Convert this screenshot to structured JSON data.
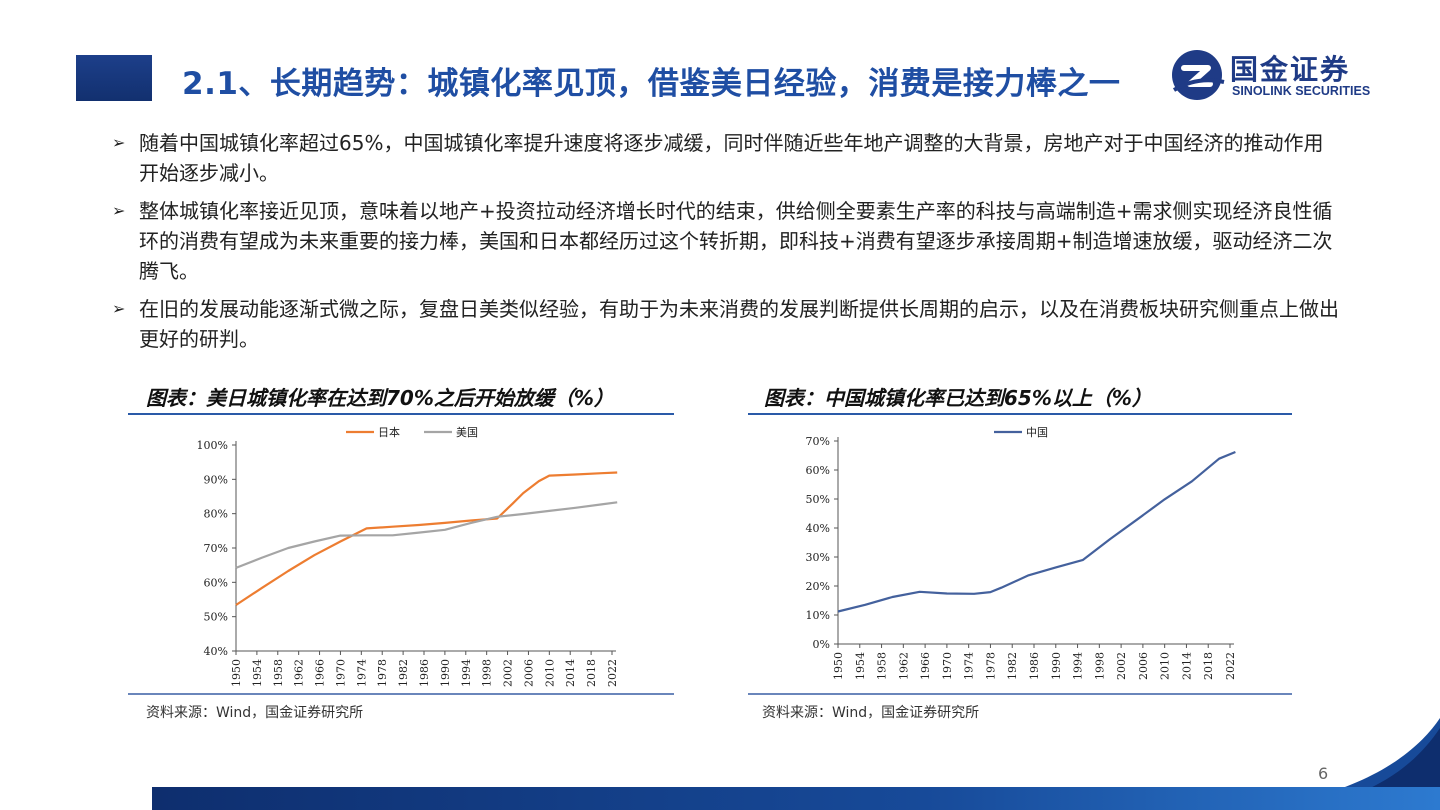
{
  "header": {
    "title": "2.1、长期趋势：城镇化率见顶，借鉴美日经验，消费是接力棒之一",
    "logo_cn": "国金证券",
    "logo_en": "SINOLINK SECURITIES",
    "logo_icon": "sinolink-logo-icon"
  },
  "bullets": [
    "随着中国城镇化率超过65%，中国城镇化率提升速度将逐步减缓，同时伴随近些年地产调整的大背景，房地产对于中国经济的推动作用开始逐步减小。",
    "整体城镇化率接近见顶，意味着以地产+投资拉动经济增长时代的结束，供给侧全要素生产率的科技与高端制造+需求侧实现经济良性循环的消费有望成为未来重要的接力棒，美国和日本都经历过这个转折期，即科技+消费有望逐步承接周期+制造增速放缓，驱动经济二次腾飞。",
    "在旧的发展动能逐渐式微之际，复盘日美类似经验，有助于为未来消费的发展判断提供长周期的启示，以及在消费板块研究侧重点上做出更好的研判。"
  ],
  "bullet_marker": "➢",
  "chart_data": [
    {
      "type": "line",
      "title": "图表：美日城镇化率在达到70%之后开始放缓（%）",
      "source": "资料来源：Wind，国金证券研究所",
      "xlabel": "",
      "ylabel": "",
      "ylim": [
        40,
        100
      ],
      "yticks": [
        "100%",
        "90%",
        "80%",
        "70%",
        "60%",
        "50%",
        "40%"
      ],
      "xticks": [
        "1950",
        "1954",
        "1958",
        "1962",
        "1966",
        "1970",
        "1974",
        "1978",
        "1982",
        "1986",
        "1990",
        "1994",
        "1998",
        "2002",
        "2006",
        "2010",
        "2014",
        "2018",
        "2022"
      ],
      "legend_position": "top",
      "series": [
        {
          "name": "日本",
          "color": "#ed7d31",
          "x": [
            1950,
            1955,
            1960,
            1965,
            1970,
            1975,
            1980,
            1985,
            1990,
            1995,
            2000,
            2003,
            2005,
            2008,
            2010,
            2015,
            2020,
            2023
          ],
          "values": [
            53.4,
            58.4,
            63.3,
            67.9,
            71.9,
            75.7,
            76.2,
            76.7,
            77.3,
            78.0,
            78.6,
            83.0,
            86.0,
            89.5,
            91.1,
            91.4,
            91.8,
            92.0
          ]
        },
        {
          "name": "美国",
          "color": "#a5a5a5",
          "x": [
            1950,
            1955,
            1960,
            1965,
            1970,
            1975,
            1980,
            1985,
            1990,
            1995,
            2000,
            2005,
            2010,
            2015,
            2020,
            2023
          ],
          "values": [
            64.2,
            67.2,
            70.0,
            71.9,
            73.6,
            73.7,
            73.7,
            74.5,
            75.3,
            77.3,
            79.1,
            79.9,
            80.8,
            81.7,
            82.7,
            83.3
          ]
        }
      ]
    },
    {
      "type": "line",
      "title": "图表：中国城镇化率已达到65%以上（%）",
      "source": "资料来源：Wind，国金证券研究所",
      "xlabel": "",
      "ylabel": "",
      "ylim": [
        0,
        70
      ],
      "yticks": [
        "70%",
        "60%",
        "50%",
        "40%",
        "30%",
        "20%",
        "10%",
        "0%"
      ],
      "xticks": [
        "1950",
        "1954",
        "1958",
        "1962",
        "1966",
        "1970",
        "1974",
        "1978",
        "1982",
        "1986",
        "1990",
        "1994",
        "1998",
        "2002",
        "2006",
        "2010",
        "2014",
        "2018",
        "2022"
      ],
      "legend_position": "top",
      "series": [
        {
          "name": "中国",
          "color": "#44619d",
          "x": [
            1950,
            1955,
            1960,
            1965,
            1970,
            1975,
            1978,
            1980,
            1985,
            1990,
            1995,
            2000,
            2005,
            2010,
            2015,
            2020,
            2023
          ],
          "values": [
            11.2,
            13.5,
            16.2,
            18.0,
            17.4,
            17.3,
            17.9,
            19.4,
            23.7,
            26.4,
            29.0,
            36.2,
            43.0,
            49.9,
            56.1,
            63.9,
            66.2
          ]
        }
      ]
    }
  ],
  "page_number": "6"
}
